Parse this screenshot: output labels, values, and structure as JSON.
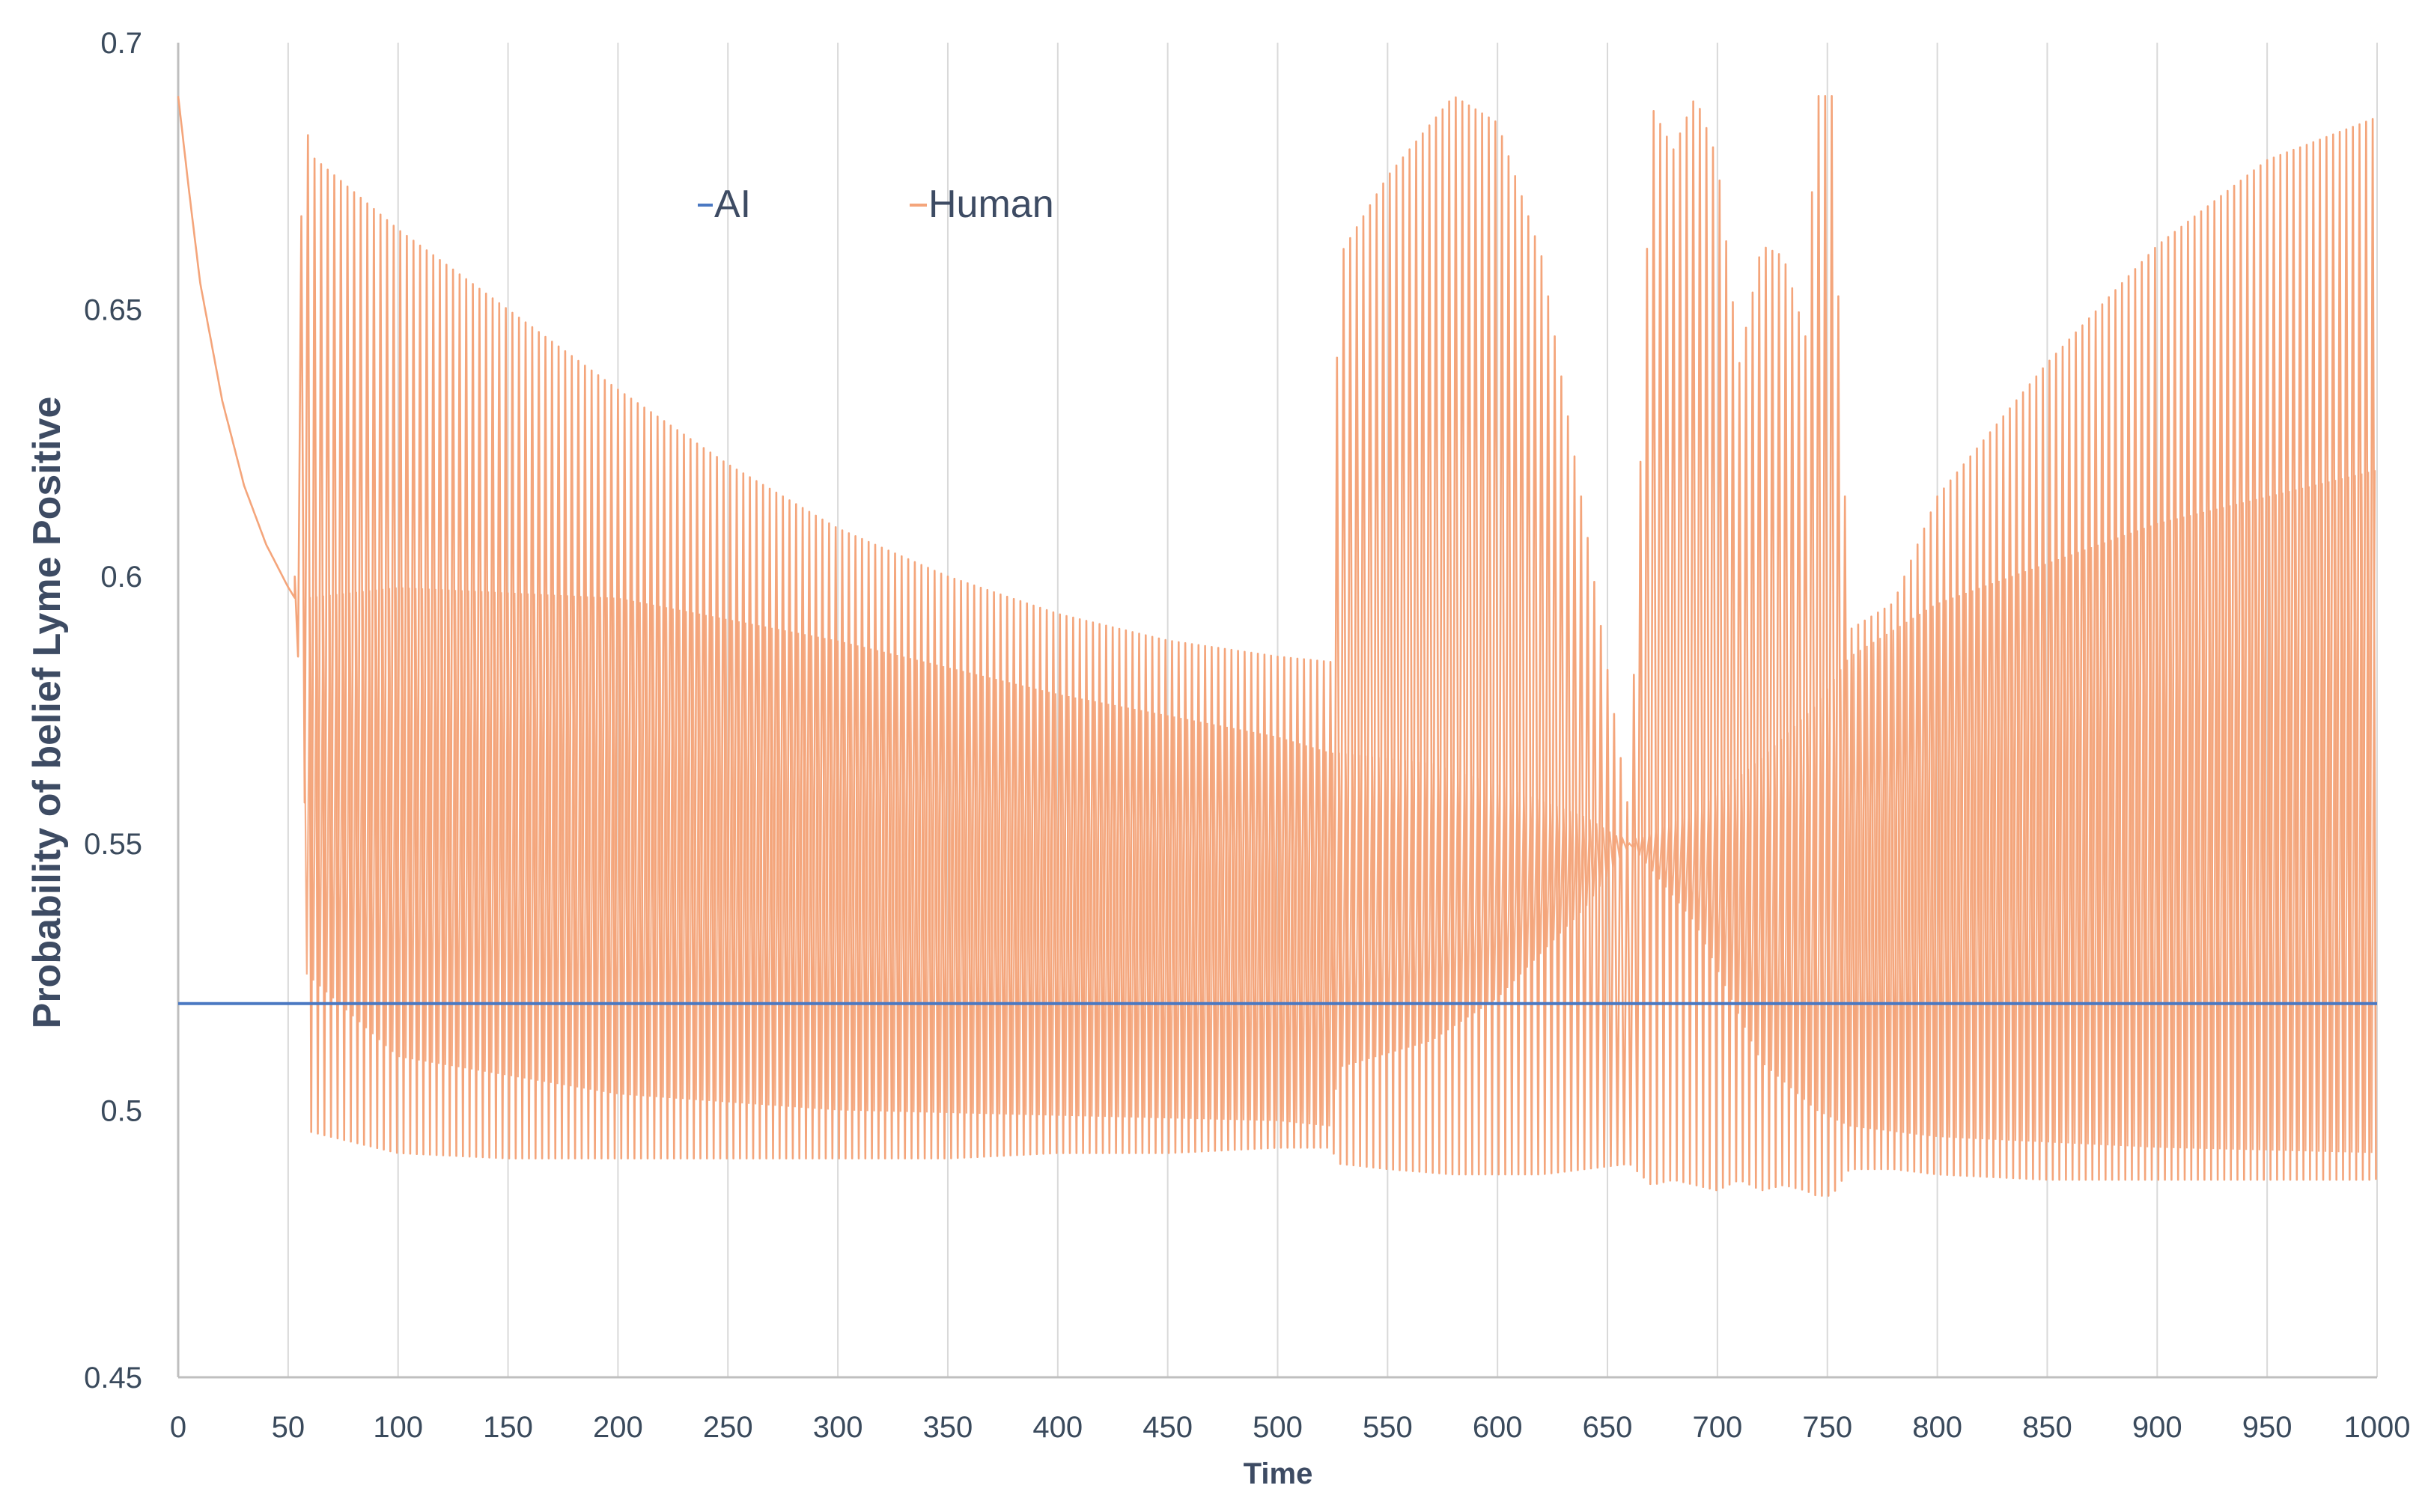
{
  "chart_data": {
    "type": "line",
    "xlabel": "Time",
    "ylabel": "Probability of belief  Lyme Positive",
    "xlim": [
      0,
      1000
    ],
    "ylim": [
      0.45,
      0.7
    ],
    "x_ticks": [
      "0",
      "50",
      "100",
      "150",
      "200",
      "250",
      "300",
      "350",
      "400",
      "450",
      "500",
      "550",
      "600",
      "650",
      "700",
      "750",
      "800",
      "850",
      "900",
      "950",
      "1000"
    ],
    "y_ticks": [
      "0.7",
      "0.65",
      "0.6",
      "0.55",
      "0.5",
      "0.45"
    ],
    "grid": {
      "vertical": true,
      "horizontal": false
    },
    "legend_position": "top-left inside",
    "colors": {
      "AI": "#4a78c2",
      "Human": "#f4a57b",
      "grid": "#d9d9d9",
      "axis": "#bfbfbf"
    },
    "series": [
      {
        "name": "AI",
        "description_points": [
          [
            0,
            0.52
          ],
          [
            1000,
            0.52
          ]
        ]
      },
      {
        "name": "Human",
        "oscillating": true,
        "period": 3,
        "initial_decay": [
          [
            0,
            0.69
          ],
          [
            5,
            0.672
          ],
          [
            10,
            0.655
          ],
          [
            20,
            0.633
          ],
          [
            30,
            0.617
          ],
          [
            40,
            0.606
          ],
          [
            50,
            0.598
          ],
          [
            53,
            0.596
          ]
        ],
        "upper_envelope": [
          [
            53,
            0.6
          ],
          [
            57,
            0.69
          ],
          [
            60,
            0.679
          ],
          [
            100,
            0.665
          ],
          [
            150,
            0.65
          ],
          [
            200,
            0.635
          ],
          [
            250,
            0.621
          ],
          [
            300,
            0.609
          ],
          [
            350,
            0.6
          ],
          [
            400,
            0.593
          ],
          [
            450,
            0.588
          ],
          [
            500,
            0.585
          ],
          [
            524,
            0.584
          ],
          [
            528,
            0.66
          ],
          [
            550,
            0.675
          ],
          [
            580,
            0.69
          ],
          [
            600,
            0.685
          ],
          [
            620,
            0.66
          ],
          [
            640,
            0.61
          ],
          [
            660,
            0.555
          ],
          [
            670,
            0.688
          ],
          [
            680,
            0.68
          ],
          [
            690,
            0.69
          ],
          [
            700,
            0.678
          ],
          [
            710,
            0.64
          ],
          [
            720,
            0.662
          ],
          [
            730,
            0.66
          ],
          [
            740,
            0.645
          ],
          [
            745,
            0.69
          ],
          [
            752,
            0.69
          ],
          [
            760,
            0.59
          ],
          [
            780,
            0.595
          ],
          [
            800,
            0.615
          ],
          [
            850,
            0.64
          ],
          [
            900,
            0.662
          ],
          [
            950,
            0.678
          ],
          [
            1000,
            0.686
          ]
        ],
        "lower_envelope": [
          [
            53,
            0.594
          ],
          [
            57,
            0.57
          ],
          [
            60,
            0.496
          ],
          [
            100,
            0.492
          ],
          [
            150,
            0.491
          ],
          [
            200,
            0.491
          ],
          [
            250,
            0.491
          ],
          [
            300,
            0.491
          ],
          [
            350,
            0.491
          ],
          [
            400,
            0.492
          ],
          [
            450,
            0.492
          ],
          [
            500,
            0.493
          ],
          [
            524,
            0.493
          ],
          [
            528,
            0.49
          ],
          [
            550,
            0.489
          ],
          [
            580,
            0.488
          ],
          [
            600,
            0.488
          ],
          [
            620,
            0.488
          ],
          [
            640,
            0.489
          ],
          [
            660,
            0.49
          ],
          [
            670,
            0.486
          ],
          [
            680,
            0.487
          ],
          [
            690,
            0.486
          ],
          [
            700,
            0.485
          ],
          [
            710,
            0.487
          ],
          [
            720,
            0.485
          ],
          [
            730,
            0.486
          ],
          [
            740,
            0.485
          ],
          [
            745,
            0.484
          ],
          [
            752,
            0.484
          ],
          [
            760,
            0.489
          ],
          [
            780,
            0.489
          ],
          [
            800,
            0.488
          ],
          [
            850,
            0.487
          ],
          [
            900,
            0.487
          ],
          [
            950,
            0.487
          ],
          [
            1000,
            0.487
          ]
        ],
        "inner_band_top": [
          [
            57,
            0.596
          ],
          [
            100,
            0.598
          ],
          [
            200,
            0.596
          ],
          [
            300,
            0.588
          ],
          [
            400,
            0.578
          ],
          [
            500,
            0.57
          ],
          [
            524,
            0.567
          ],
          [
            528,
            0.567
          ],
          [
            570,
            0.565
          ],
          [
            600,
            0.561
          ],
          [
            640,
            0.555
          ],
          [
            660,
            0.55
          ],
          [
            690,
            0.556
          ],
          [
            720,
            0.566
          ],
          [
            745,
            0.576
          ],
          [
            760,
            0.585
          ],
          [
            800,
            0.595
          ],
          [
            900,
            0.61
          ],
          [
            1000,
            0.62
          ]
        ],
        "inner_band_bottom": [
          [
            57,
            0.526
          ],
          [
            100,
            0.51
          ],
          [
            200,
            0.503
          ],
          [
            300,
            0.5
          ],
          [
            400,
            0.499
          ],
          [
            500,
            0.498
          ],
          [
            524,
            0.497
          ],
          [
            528,
            0.508
          ],
          [
            570,
            0.513
          ],
          [
            600,
            0.521
          ],
          [
            640,
            0.538
          ],
          [
            660,
            0.55
          ],
          [
            690,
            0.535
          ],
          [
            720,
            0.509
          ],
          [
            745,
            0.5
          ],
          [
            760,
            0.497
          ],
          [
            800,
            0.495
          ],
          [
            900,
            0.493
          ],
          [
            1000,
            0.492
          ]
        ]
      }
    ]
  }
}
